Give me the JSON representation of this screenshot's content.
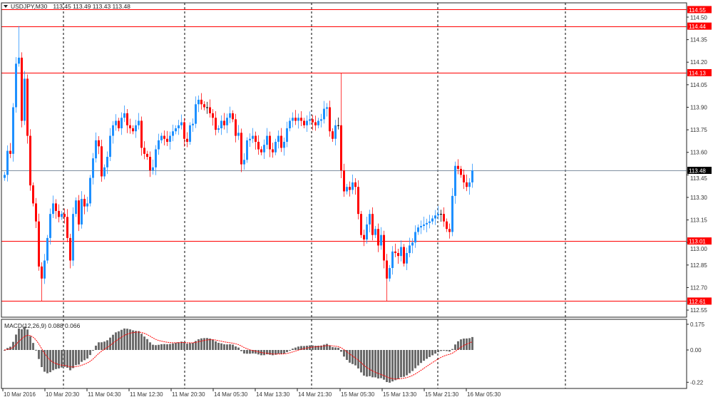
{
  "header": {
    "symbol": "USDJPY,M30",
    "ohlc": "113.45 113.49 113.43 113.48",
    "menu_icon": "triangle-down-icon"
  },
  "macd_label": "MACD(12,26,9) 0.088 0.066",
  "colors": {
    "up": "#1e90ff",
    "down": "#ff0000",
    "level": "#ff0000",
    "price_line": "#8090a0",
    "macd_hist": "#6b6b6b",
    "macd_signal": "#ff0000"
  },
  "chart_data": [
    {
      "type": "candlestick",
      "title": "USDJPY,M30",
      "ylim": [
        112.52,
        114.6
      ],
      "y_ticks": [
        "114.50",
        "114.35",
        "114.20",
        "114.05",
        "113.90",
        "113.75",
        "113.60",
        "113.45",
        "113.30",
        "113.15",
        "113.00",
        "112.85",
        "112.70",
        "112.55"
      ],
      "x_ticks": [
        "10 Mar 2016",
        "10 Mar 20:30",
        "11 Mar 04:30",
        "11 Mar 12:30",
        "11 Mar 20:30",
        "14 Mar 05:30",
        "14 Mar 13:30",
        "14 Mar 21:30",
        "15 Mar 05:30",
        "15 Mar 13:30",
        "15 Mar 21:30",
        "16 Mar 05:30"
      ],
      "grid": false,
      "levels": [
        {
          "price": 114.55,
          "label": "114.55"
        },
        {
          "price": 114.44,
          "label": "114.44"
        },
        {
          "price": 114.13,
          "label": "114.13"
        },
        {
          "price": 113.01,
          "label": "113.01"
        },
        {
          "price": 112.61,
          "label": "112.61"
        }
      ],
      "current_price": {
        "price": 113.48,
        "label": "113.48"
      },
      "extremes": [
        {
          "bar": 5,
          "high": 114.44
        },
        {
          "bar": 13,
          "low": 112.61
        },
        {
          "bar": 118,
          "high": 114.13
        },
        {
          "bar": 134,
          "low": 112.61
        }
      ],
      "close": [
        113.45,
        113.61,
        113.59,
        113.9,
        114.19,
        114.23,
        113.81,
        114.09,
        113.71,
        113.38,
        113.26,
        113.14,
        112.84,
        112.76,
        112.88,
        113.03,
        113.19,
        113.26,
        113.21,
        113.17,
        113.19,
        113.17,
        113.03,
        112.88,
        113.19,
        113.28,
        113.12,
        113.29,
        113.24,
        113.26,
        113.43,
        113.56,
        113.68,
        113.64,
        113.44,
        113.5,
        113.57,
        113.71,
        113.78,
        113.81,
        113.76,
        113.83,
        113.86,
        113.78,
        113.76,
        113.74,
        113.78,
        113.81,
        113.63,
        113.59,
        113.57,
        113.48,
        113.5,
        113.62,
        113.68,
        113.71,
        113.69,
        113.67,
        113.71,
        113.74,
        113.76,
        113.78,
        113.8,
        113.69,
        113.67,
        113.78,
        113.79,
        113.92,
        113.95,
        113.92,
        113.9,
        113.9,
        113.86,
        113.83,
        113.75,
        113.76,
        113.81,
        113.78,
        113.83,
        113.86,
        113.82,
        113.71,
        113.73,
        113.52,
        113.55,
        113.68,
        113.69,
        113.71,
        113.67,
        113.62,
        113.6,
        113.65,
        113.71,
        113.62,
        113.6,
        113.67,
        113.71,
        113.63,
        113.67,
        113.76,
        113.81,
        113.83,
        113.81,
        113.83,
        113.81,
        113.78,
        113.81,
        113.82,
        113.8,
        113.78,
        113.81,
        113.82,
        113.89,
        113.9,
        113.74,
        113.69,
        113.78,
        113.78,
        113.48,
        113.34,
        113.37,
        113.35,
        113.4,
        113.37,
        113.19,
        113.05,
        113.02,
        113.12,
        113.19,
        113.05,
        113.09,
        112.98,
        113.05,
        112.88,
        112.76,
        112.83,
        112.94,
        112.93,
        112.91,
        112.97,
        112.86,
        112.93,
        112.98,
        113.0,
        113.07,
        113.1,
        113.11,
        113.12,
        113.13,
        113.14,
        113.16,
        113.18,
        113.19,
        113.19,
        113.14,
        113.09,
        113.07,
        113.31,
        113.51,
        113.49,
        113.45,
        113.4,
        113.37,
        113.4,
        113.48
      ]
    },
    {
      "type": "bar",
      "title": "MACD(12,26,9)",
      "macd": 0.088,
      "signal": 0.066,
      "ylim": [
        -0.23,
        0.19
      ],
      "y_ticks": [
        "0.175",
        "0.00",
        "-0.22"
      ]
    }
  ]
}
